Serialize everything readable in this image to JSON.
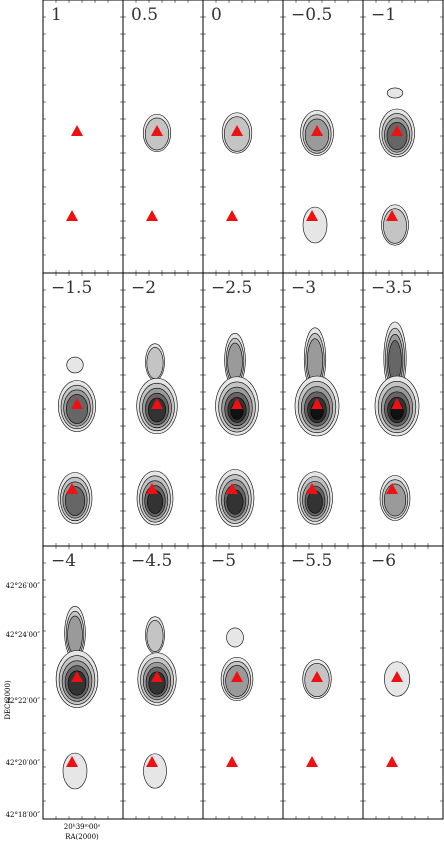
{
  "panels": [
    {
      "label": "1"
    },
    {
      "label": "0.5"
    },
    {
      "label": "0"
    },
    {
      "label": "−0.5"
    },
    {
      "label": "−1"
    },
    {
      "label": "−1.5"
    },
    {
      "label": "−2"
    },
    {
      "label": "−2.5"
    },
    {
      "label": "−3"
    },
    {
      "label": "−3.5"
    },
    {
      "label": "−4"
    },
    {
      "label": "−4.5"
    },
    {
      "label": "−5"
    },
    {
      "label": "−5.5"
    },
    {
      "label": "−6"
    }
  ],
  "axes": {
    "y_label": "DEC(2000)",
    "x_label": "RA(2000)",
    "x_tick": "20ʰ39ᵐ00ˢ",
    "y_ticks": [
      "42°26′00″",
      "42°24′00″",
      "42°22′00″",
      "42°20′00″",
      "42°18′00″"
    ]
  }
}
